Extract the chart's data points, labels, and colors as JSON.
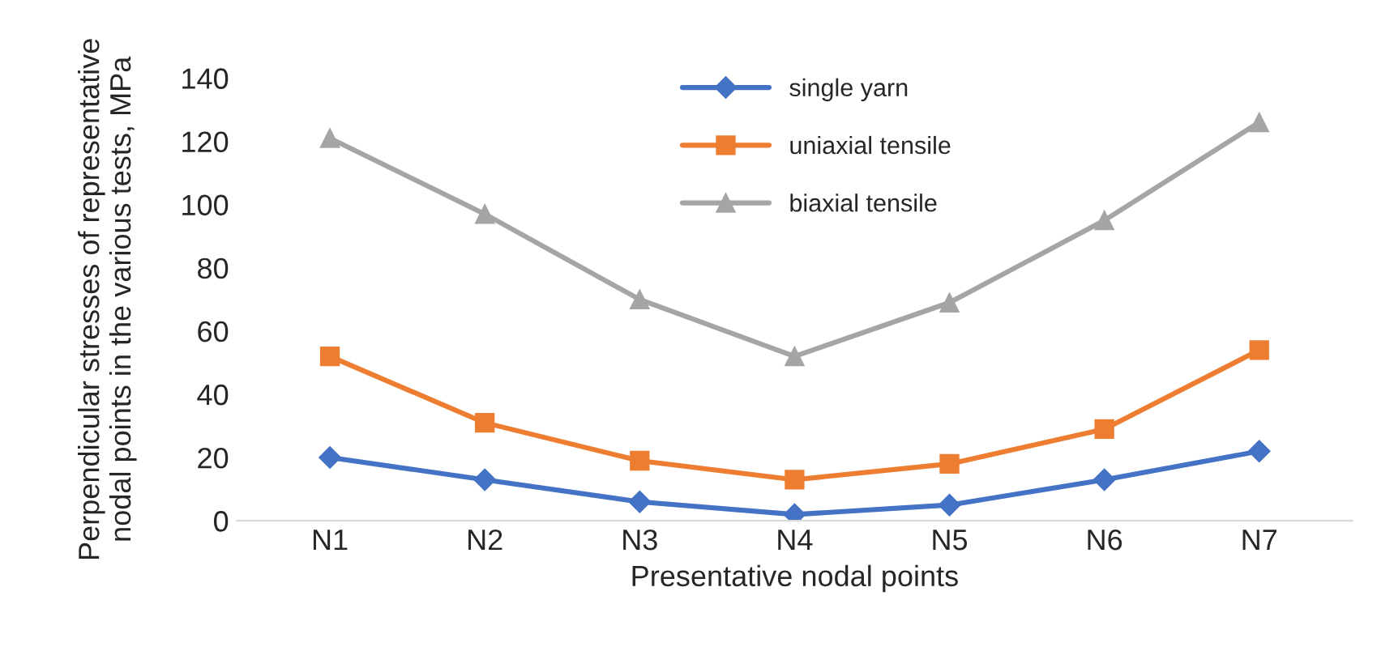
{
  "chart_data": {
    "type": "line",
    "xlabel": "Presentative nodal points",
    "ylabel": "Perpendicular stresses of representative nodal points in the various tests, MPa",
    "categories": [
      "N1",
      "N2",
      "N3",
      "N4",
      "N5",
      "N6",
      "N7"
    ],
    "series": [
      {
        "name": "single yarn",
        "color": "#4472c4",
        "marker": "diamond",
        "values": [
          20,
          13,
          6,
          2,
          5,
          13,
          22
        ]
      },
      {
        "name": "uniaxial tensile",
        "color": "#ed7d31",
        "marker": "square",
        "values": [
          52,
          31,
          19,
          13,
          18,
          29,
          54
        ]
      },
      {
        "name": "biaxial tensile",
        "color": "#a5a5a5",
        "marker": "triangle",
        "values": [
          121,
          97,
          70,
          52,
          69,
          95,
          126
        ]
      }
    ],
    "ylim": [
      0,
      140
    ],
    "yticks": [
      0,
      20,
      40,
      60,
      80,
      100,
      120,
      140
    ],
    "grid": false,
    "legend": "top",
    "line_style": "solid"
  }
}
